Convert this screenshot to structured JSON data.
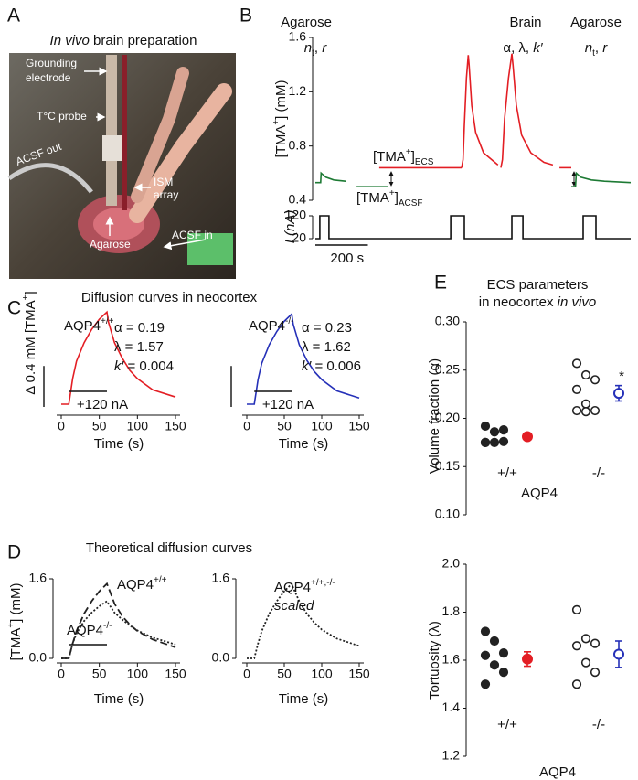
{
  "panels": [
    {
      "label": "A",
      "title": [
        [
          {
            "text": "In vivo",
            "style": "italic"
          },
          {
            "text": " brain preparation"
          }
        ]
      ]
    },
    {
      "label": "B"
    },
    {
      "label": "C",
      "title": [
        "Diffusion curves in neocortex"
      ]
    },
    {
      "label": "D",
      "title": [
        "Theoretical diffusion curves"
      ]
    },
    {
      "label": "E",
      "title": [
        "ECS parameters",
        [
          {
            "text": "in neocortex "
          },
          {
            "text": "in vivo",
            "style": "italic"
          }
        ]
      ]
    }
  ],
  "photo_labels": [
    "Grounding",
    "electrode",
    "T°C probe",
    "ACSF out",
    "ISM",
    "array",
    "Agarose",
    "ACSF in"
  ],
  "chart_data": [
    {
      "type": "line",
      "ylabel": [
        {
          "text": "[TMA"
        },
        {
          "text": "+",
          "style": "sup"
        },
        {
          "text": "] (mM)"
        }
      ],
      "xlim": [
        0,
        1200
      ],
      "ylim": [
        0.4,
        1.6
      ],
      "yticks": [
        0.4,
        0.8,
        1.2,
        1.6
      ],
      "annotations": [
        "Agarose",
        [
          {
            "text": "n",
            "style": "italic"
          },
          {
            "text": "t",
            "style": "sub"
          },
          {
            "text": ", "
          },
          {
            "text": "r",
            "style": "italic"
          }
        ],
        "Brain",
        [
          {
            "text": "α, λ, "
          },
          {
            "text": "k′",
            "style": "italic"
          }
        ],
        "Agarose",
        [
          {
            "text": "n",
            "style": "italic"
          },
          {
            "text": "t",
            "style": "sub"
          },
          {
            "text": ", "
          },
          {
            "text": "r",
            "style": "italic"
          }
        ],
        [
          {
            "text": "[TMA"
          },
          {
            "text": "+",
            "style": "sup"
          },
          {
            "text": "]"
          },
          {
            "text": "ECS",
            "style": "sub"
          }
        ],
        [
          {
            "text": "[TMA"
          },
          {
            "text": "+",
            "style": "sup"
          },
          {
            "text": "]"
          },
          {
            "text": "ACSF",
            "style": "sub"
          }
        ]
      ],
      "series": [
        {
          "color": "#1d7a34",
          "x": [
            0,
            20,
            22,
            40,
            70,
            115
          ],
          "values": [
            0.53,
            0.53,
            0.6,
            0.57,
            0.55,
            0.54
          ]
        },
        {
          "color": "#1d7a34",
          "x": [
            157,
            278
          ],
          "values": [
            0.5,
            0.5
          ]
        },
        {
          "color": "#e31e24",
          "x": [
            243,
            557
          ],
          "values": [
            0.64,
            0.64
          ]
        },
        {
          "color": "#e31e24",
          "x": [
            557,
            562,
            567,
            575,
            582,
            585,
            595,
            610,
            640,
            695
          ],
          "values": [
            0.64,
            0.7,
            0.95,
            1.3,
            1.47,
            1.4,
            1.1,
            0.9,
            0.75,
            0.66
          ]
        },
        {
          "color": "#e31e24",
          "x": [
            706,
            712,
            720,
            735,
            748,
            752,
            765,
            785,
            820,
            870,
            904
          ],
          "values": [
            0.64,
            0.7,
            1.0,
            1.3,
            1.48,
            1.4,
            1.1,
            0.88,
            0.75,
            0.68,
            0.66
          ]
        },
        {
          "color": "#e31e24",
          "x": [
            929,
            974
          ],
          "values": [
            0.64,
            0.64
          ]
        },
        {
          "color": "#1d7a34",
          "x": [
            974,
            990,
            993,
            1010,
            1050,
            1100,
            1200
          ],
          "values": [
            0.5,
            0.5,
            0.6,
            0.57,
            0.55,
            0.54,
            0.53
          ]
        }
      ]
    },
    {
      "type": "line",
      "ylabel": [
        {
          "text": "I",
          "style": "italic"
        },
        {
          "text": " (nA)",
          "style": "italic"
        }
      ],
      "xlim": [
        0,
        1200
      ],
      "ylim": [
        20,
        120
      ],
      "yticks": [
        20,
        120
      ],
      "scale_bar": {
        "value": 200,
        "label": "200 s"
      },
      "series": [
        {
          "color": "#111111",
          "x": [
            0,
            17,
            17,
            52,
            52,
            515,
            515,
            567,
            567,
            748,
            748,
            790,
            790,
            1019,
            1019,
            1068,
            1068,
            1200
          ],
          "values": [
            20,
            20,
            120,
            120,
            20,
            20,
            120,
            120,
            20,
            20,
            120,
            120,
            20,
            20,
            120,
            120,
            20,
            20
          ]
        }
      ]
    },
    {
      "type": "line",
      "xlabel": "Time (s)",
      "x": [
        0,
        10,
        15,
        20,
        30,
        40,
        50,
        60,
        62,
        70,
        80,
        90,
        100,
        120,
        150
      ],
      "xlim": [
        0,
        150
      ],
      "xticks": [
        0,
        50,
        100,
        150
      ],
      "ylim": [
        0,
        1
      ],
      "stimulus": [
        10,
        60
      ],
      "stimulus_label": "+120 nA",
      "scale_bar": {
        "value": 0.4,
        "label": [
          {
            "text": "Δ 0.4 mM [TMA"
          },
          {
            "text": "+",
            "style": "sup"
          },
          {
            "text": "]"
          }
        ]
      },
      "annotations": [
        [
          {
            "text": "AQP4"
          },
          {
            "text": "+/+",
            "style": "sup"
          }
        ],
        "α = 0.19",
        "λ = 1.57",
        [
          {
            "text": "k′",
            "style": "italic"
          },
          {
            "text": " = 0.004"
          }
        ]
      ],
      "series": [
        {
          "color": "#e31e24",
          "values": [
            0,
            0,
            0.25,
            0.42,
            0.6,
            0.73,
            0.83,
            0.9,
            0.8,
            0.6,
            0.45,
            0.33,
            0.25,
            0.14,
            0.07
          ]
        }
      ]
    },
    {
      "type": "line",
      "xlabel": "Time (s)",
      "x": [
        0,
        10,
        15,
        20,
        30,
        40,
        50,
        60,
        62,
        70,
        80,
        90,
        100,
        120,
        150
      ],
      "xlim": [
        0,
        150
      ],
      "xticks": [
        0,
        50,
        100,
        150
      ],
      "ylim": [
        0,
        1
      ],
      "stimulus": [
        10,
        60
      ],
      "stimulus_label": "+120 nA",
      "scale_bar": {
        "value": 0.4
      },
      "annotations": [
        [
          {
            "text": "AQP4"
          },
          {
            "text": "-/-",
            "style": "sup"
          }
        ],
        "α = 0.23",
        "λ = 1.62",
        [
          {
            "text": "k′",
            "style": "italic"
          },
          {
            "text": " = 0.006"
          }
        ]
      ],
      "series": [
        {
          "color": "#2530b8",
          "values": [
            0,
            0,
            0.24,
            0.4,
            0.58,
            0.71,
            0.81,
            0.88,
            0.78,
            0.58,
            0.43,
            0.32,
            0.24,
            0.13,
            0.06
          ]
        }
      ]
    },
    {
      "type": "line",
      "xlabel": "Time (s)",
      "ylabel": [
        {
          "text": "[TMA"
        },
        {
          "text": "+",
          "style": "sup"
        },
        {
          "text": "] (mM)"
        }
      ],
      "x": [
        0,
        10,
        15,
        20,
        30,
        40,
        50,
        60,
        62,
        70,
        80,
        90,
        100,
        120,
        150
      ],
      "xlim": [
        0,
        150
      ],
      "xticks": [
        0,
        50,
        100,
        150
      ],
      "ylim": [
        0,
        1.6
      ],
      "yticks": [
        {
          "value": 0,
          "label": "0.0"
        },
        1.6
      ],
      "stimulus": [
        10,
        60
      ],
      "annotations": [
        [
          {
            "text": "AQP4"
          },
          {
            "text": "+/+",
            "style": "sup"
          }
        ],
        [
          {
            "text": "AQP4"
          },
          {
            "text": "-/-",
            "style": "sup"
          }
        ]
      ],
      "series": [
        {
          "color": "#222222",
          "dash": "dashed",
          "values": [
            0,
            0,
            0.3,
            0.55,
            0.9,
            1.15,
            1.35,
            1.5,
            1.42,
            1.1,
            0.85,
            0.68,
            0.55,
            0.38,
            0.22
          ]
        },
        {
          "color": "#222222",
          "dash": "dotted",
          "values": [
            0,
            0,
            0.3,
            0.5,
            0.75,
            0.92,
            1.05,
            1.15,
            1.1,
            0.92,
            0.78,
            0.66,
            0.56,
            0.42,
            0.28
          ]
        }
      ]
    },
    {
      "type": "line",
      "xlabel": "Time (s)",
      "x": [
        0,
        10,
        15,
        20,
        30,
        40,
        50,
        60,
        62,
        70,
        80,
        90,
        100,
        120,
        150
      ],
      "xlim": [
        0,
        150
      ],
      "xticks": [
        0,
        50,
        100,
        150
      ],
      "ylim": [
        0,
        1.6
      ],
      "yticks": [
        {
          "value": 0,
          "label": "0.0"
        },
        1.6
      ],
      "annotations": [
        [
          {
            "text": "AQP4"
          },
          {
            "text": "+/+,-/-",
            "style": "sup"
          }
        ],
        [
          {
            "text": "scaled",
            "style": "italic"
          }
        ]
      ],
      "series": [
        {
          "color": "#222222",
          "dash": "dotted",
          "values": [
            0,
            0,
            0.3,
            0.55,
            0.9,
            1.15,
            1.35,
            1.5,
            1.42,
            1.15,
            0.9,
            0.72,
            0.58,
            0.4,
            0.25
          ]
        }
      ]
    },
    {
      "type": "strip",
      "xlabel": "AQP4",
      "ylabel": "Volume fraction (α)",
      "categories": [
        "+/+",
        "-/-"
      ],
      "ylim": [
        0.1,
        0.3
      ],
      "yticks": [
        {
          "value": 0.1,
          "label": "0.10"
        },
        0.15,
        {
          "value": 0.2,
          "label": "0.20"
        },
        0.25,
        {
          "value": 0.3,
          "label": "0.30"
        }
      ],
      "annotations": [
        "*"
      ],
      "groups": [
        {
          "color": "#222222",
          "values": [
            0.192,
            0.186,
            0.188,
            0.175,
            0.175,
            0.176,
            0.175
          ],
          "mean": 0.181,
          "error": 0.003,
          "mean_color": "#e31e24",
          "mean_marker": "filled",
          "marker": "filled"
        },
        {
          "color": "#222222",
          "values": [
            0.257,
            0.245,
            0.24,
            0.23,
            0.215,
            0.208,
            0.208,
            0.207
          ],
          "mean": 0.226,
          "error": 0.008,
          "mean_color": "#2530b8",
          "mean_marker": "open",
          "marker": "open"
        }
      ]
    },
    {
      "type": "strip",
      "xlabel": "AQP4",
      "ylabel": "Tortuosity (λ)",
      "categories": [
        "+/+",
        "-/-"
      ],
      "ylim": [
        1.2,
        2.0
      ],
      "yticks": [
        1.2,
        1.4,
        1.6,
        1.8,
        {
          "value": 2.0,
          "label": "2.0"
        }
      ],
      "groups": [
        {
          "color": "#222222",
          "values": [
            1.72,
            1.68,
            1.63,
            1.62,
            1.58,
            1.55,
            1.5
          ],
          "mean": 1.605,
          "error": 0.03,
          "mean_color": "#e31e24",
          "mean_marker": "filled",
          "marker": "filled"
        },
        {
          "color": "#222222",
          "values": [
            1.81,
            1.69,
            1.67,
            1.66,
            1.59,
            1.55,
            1.5
          ],
          "mean": 1.625,
          "error": 0.055,
          "mean_color": "#2530b8",
          "mean_marker": "open",
          "marker": "open"
        }
      ]
    }
  ]
}
